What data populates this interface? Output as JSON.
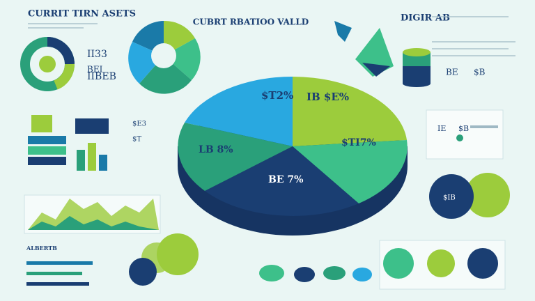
{
  "header": {
    "title": "CURRIT TIRN ASETS",
    "center_title": "CUBRT RBATIOO VALLD",
    "right_title": "DIGIR AB"
  },
  "pie": {
    "labels": [
      "$T2%",
      "IB $E%",
      "$TI7%",
      "LB 8%",
      "BE 7%"
    ]
  },
  "left_panel": {
    "stats": [
      "II33",
      "BEI",
      "IIBEB"
    ],
    "caption": "ALBERTB"
  },
  "right_panel": {
    "stats": [
      "BE",
      "$B",
      "IE",
      "$B"
    ],
    "badge": "$IB"
  },
  "small_labels": [
    "$E3",
    "$T"
  ]
}
